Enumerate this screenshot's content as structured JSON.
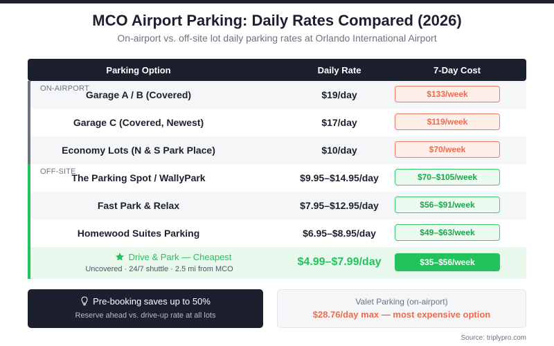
{
  "title": "MCO Airport Parking: Daily Rates Compared (2026)",
  "subtitle": "On-airport vs. off-site lot daily parking rates at Orlando International Airport",
  "colors": {
    "header_bg": "#1c1f2e",
    "on_airport_accent": "#6b7280",
    "on_airport_pill": "#ee6b4d",
    "off_site_accent": "#22c35c",
    "best_bg": "#e8f8ed"
  },
  "chart_data": {
    "type": "table",
    "columns": [
      "Parking Option",
      "Daily Rate",
      "7-Day Cost"
    ],
    "sections": [
      {
        "label": "ON-AIRPORT",
        "rows": [
          {
            "option": "Garage A / B (Covered)",
            "daily_rate": "$19/day",
            "week_cost": "$133/week"
          },
          {
            "option": "Garage C (Covered, Newest)",
            "daily_rate": "$17/day",
            "week_cost": "$119/week"
          },
          {
            "option": "Economy Lots (N & S Park Place)",
            "daily_rate": "$10/day",
            "week_cost": "$70/week"
          }
        ]
      },
      {
        "label": "OFF-SITE",
        "rows": [
          {
            "option": "The Parking Spot / WallyPark",
            "daily_rate": "$9.95–$14.95/day",
            "week_cost": "$70–$105/week"
          },
          {
            "option": "Fast Park & Relax",
            "daily_rate": "$7.95–$12.95/day",
            "week_cost": "$56–$91/week"
          },
          {
            "option": "Homewood Suites Parking",
            "daily_rate": "$6.95–$8.95/day",
            "week_cost": "$49–$63/week"
          }
        ]
      }
    ],
    "highlight": {
      "icon": "star-icon",
      "option": "Drive & Park — Cheapest",
      "details": "Uncovered · 24/7 shuttle · 2.5 mi from MCO",
      "daily_rate": "$4.99–$7.99/day",
      "week_cost": "$35–$56/week"
    }
  },
  "notes": {
    "prebook": {
      "icon": "lightbulb-icon",
      "title": "Pre-booking saves up to 50%",
      "text": "Reserve ahead vs. drive-up rate at all lots"
    },
    "valet": {
      "title": "Valet Parking (on-airport)",
      "text": "$28.76/day max — most expensive option"
    }
  },
  "source": "Source: triplypro.com"
}
